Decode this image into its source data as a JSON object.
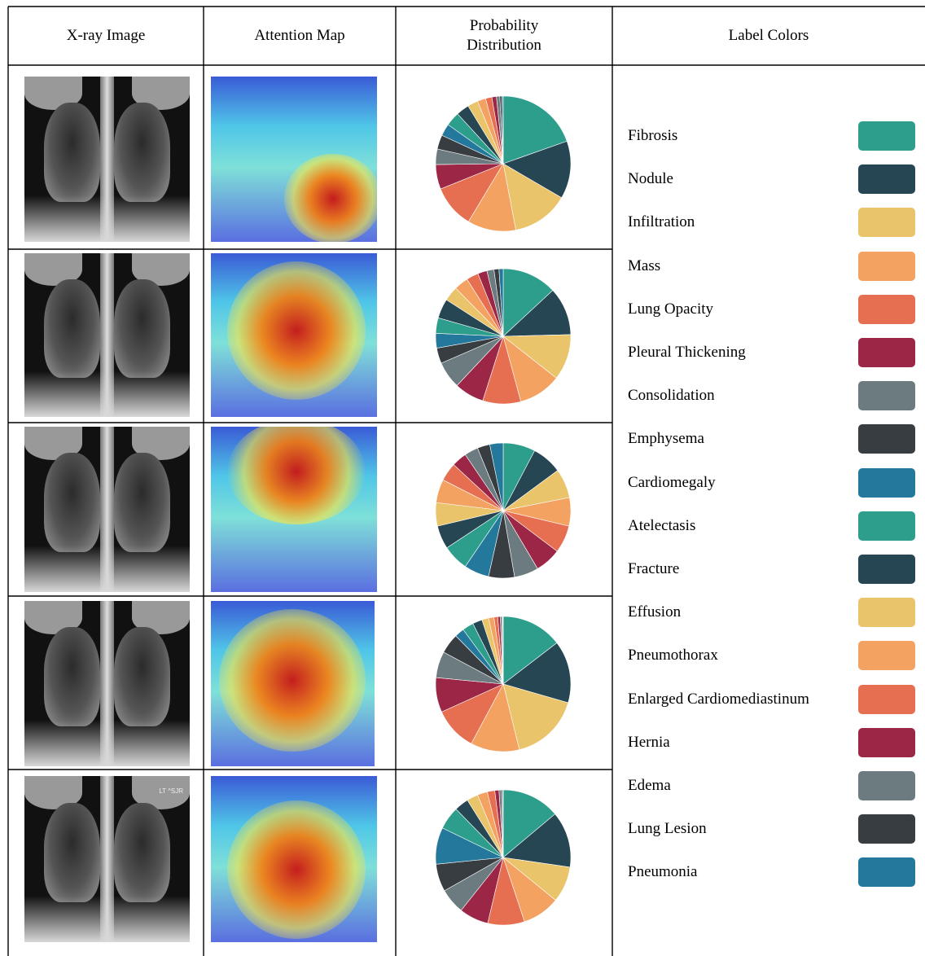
{
  "headers": {
    "xray": "X-ray Image",
    "attention": "Attention Map",
    "probability_line1": "Probability",
    "probability_line2": "Distribution",
    "label_colors": "Label Colors"
  },
  "labels": [
    {
      "name": "Fibrosis",
      "color": "#2e9e8c"
    },
    {
      "name": "Nodule",
      "color": "#264653"
    },
    {
      "name": "Infiltration",
      "color": "#e9c46a"
    },
    {
      "name": "Mass",
      "color": "#f4a261"
    },
    {
      "name": "Lung Opacity",
      "color": "#e76f51"
    },
    {
      "name": "Pleural Thickening",
      "color": "#9b2646"
    },
    {
      "name": "Consolidation",
      "color": "#6c7b80"
    },
    {
      "name": "Emphysema",
      "color": "#383d42"
    },
    {
      "name": "Cardiomegaly",
      "color": "#24789c"
    },
    {
      "name": "Atelectasis",
      "color": "#2e9e8c"
    },
    {
      "name": "Fracture",
      "color": "#264653"
    },
    {
      "name": "Effusion",
      "color": "#e9c46a"
    },
    {
      "name": "Pneumothorax",
      "color": "#f4a261"
    },
    {
      "name": "Enlarged Cardiomediastinum",
      "color": "#e76f51"
    },
    {
      "name": "Hernia",
      "color": "#9b2646"
    },
    {
      "name": "Edema",
      "color": "#6c7b80"
    },
    {
      "name": "Lung Lesion",
      "color": "#383d42"
    },
    {
      "name": "Pneumonia",
      "color": "#24789c"
    }
  ],
  "xray_annotations": {
    "row5_marker": "LT ^SJR"
  },
  "chart_data": [
    {
      "type": "pie",
      "row": 1,
      "categories": [
        "Fibrosis",
        "Nodule",
        "Infiltration",
        "Mass",
        "Lung Opacity",
        "Pleural Thickening",
        "Consolidation",
        "Emphysema",
        "Cardiomegaly",
        "Atelectasis",
        "Fracture",
        "Effusion",
        "Pneumothorax",
        "Enlarged Cardiomediastinum",
        "Hernia",
        "Edema",
        "Lung Lesion",
        "Pneumonia"
      ],
      "values": [
        0.196,
        0.138,
        0.136,
        0.116,
        0.103,
        0.059,
        0.037,
        0.034,
        0.029,
        0.034,
        0.031,
        0.025,
        0.02,
        0.015,
        0.011,
        0.008,
        0.005,
        0.003
      ]
    },
    {
      "type": "pie",
      "row": 2,
      "categories": [
        "Fibrosis",
        "Nodule",
        "Infiltration",
        "Mass",
        "Lung Opacity",
        "Pleural Thickening",
        "Consolidation",
        "Emphysema",
        "Cardiomegaly",
        "Atelectasis",
        "Fracture",
        "Effusion",
        "Pneumothorax",
        "Enlarged Cardiomediastinum",
        "Hernia",
        "Edema",
        "Lung Lesion",
        "Pneumonia"
      ],
      "values": [
        0.131,
        0.115,
        0.11,
        0.102,
        0.091,
        0.071,
        0.065,
        0.037,
        0.035,
        0.037,
        0.047,
        0.035,
        0.034,
        0.029,
        0.022,
        0.017,
        0.012,
        0.01
      ]
    },
    {
      "type": "pie",
      "row": 3,
      "categories": [
        "Fibrosis",
        "Nodule",
        "Infiltration",
        "Mass",
        "Lung Opacity",
        "Pleural Thickening",
        "Consolidation",
        "Emphysema",
        "Cardiomegaly",
        "Atelectasis",
        "Fracture",
        "Effusion",
        "Pneumothorax",
        "Enlarged Cardiomediastinum",
        "Hernia",
        "Edema",
        "Lung Lesion",
        "Pneumonia"
      ],
      "values": [
        0.077,
        0.072,
        0.07,
        0.068,
        0.066,
        0.062,
        0.058,
        0.062,
        0.06,
        0.062,
        0.056,
        0.056,
        0.056,
        0.044,
        0.036,
        0.033,
        0.03,
        0.032
      ]
    },
    {
      "type": "pie",
      "row": 4,
      "categories": [
        "Fibrosis",
        "Nodule",
        "Infiltration",
        "Mass",
        "Lung Opacity",
        "Pleural Thickening",
        "Consolidation",
        "Emphysema",
        "Cardiomegaly",
        "Atelectasis",
        "Fracture",
        "Effusion",
        "Pneumothorax",
        "Enlarged Cardiomediastinum",
        "Hernia",
        "Edema",
        "Lung Lesion",
        "Pneumonia"
      ],
      "values": [
        0.146,
        0.149,
        0.167,
        0.117,
        0.104,
        0.083,
        0.063,
        0.048,
        0.023,
        0.027,
        0.023,
        0.016,
        0.013,
        0.009,
        0.006,
        0.004,
        0.002,
        0.001
      ]
    },
    {
      "type": "pie",
      "row": 5,
      "categories": [
        "Fibrosis",
        "Nodule",
        "Infiltration",
        "Mass",
        "Lung Opacity",
        "Pleural Thickening",
        "Consolidation",
        "Emphysema",
        "Cardiomegaly",
        "Atelectasis",
        "Fracture",
        "Effusion",
        "Pneumothorax",
        "Enlarged Cardiomediastinum",
        "Hernia",
        "Edema",
        "Lung Lesion",
        "Pneumonia"
      ],
      "values": [
        0.139,
        0.134,
        0.086,
        0.09,
        0.088,
        0.07,
        0.061,
        0.066,
        0.088,
        0.055,
        0.034,
        0.027,
        0.024,
        0.018,
        0.01,
        0.006,
        0.003,
        0.001
      ]
    }
  ]
}
